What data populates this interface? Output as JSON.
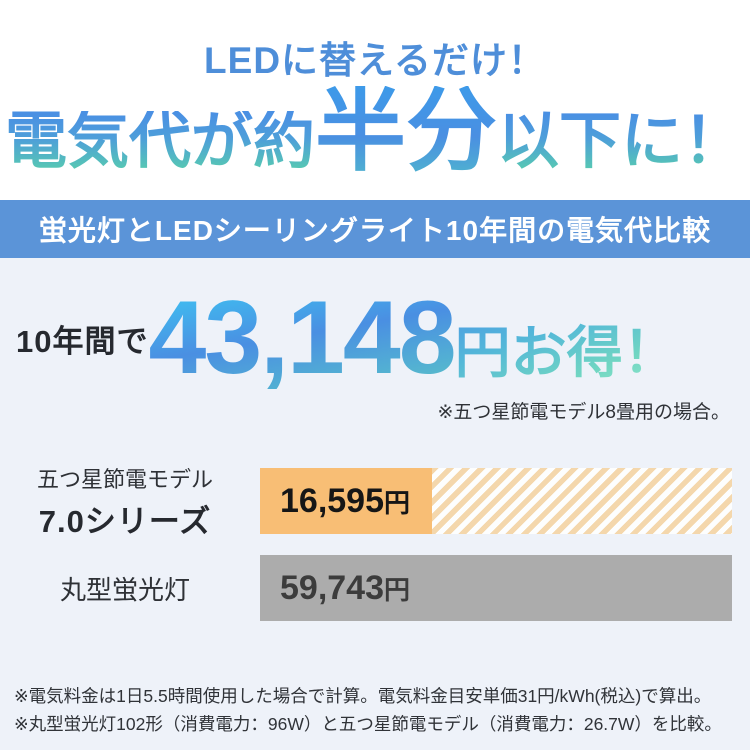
{
  "header": {
    "subtitle": "LEDに替えるだけ！",
    "title_left": "電気代が約",
    "title_emphasis": "半分",
    "title_right": "以下に！"
  },
  "banner": {
    "text": "蛍光灯とLEDシーリングライト10年間の電気代比較"
  },
  "savings": {
    "prefix": "10年間で",
    "amount": "43,148",
    "unit_suffix": "円お得！",
    "note": "※五つ星節電モデル8畳用の場合。"
  },
  "chart_data": {
    "type": "bar",
    "title": "蛍光灯とLEDシーリングライト10年間の電気代比較",
    "orientation": "horizontal",
    "unit": "円",
    "categories": [
      "五つ星節電モデル 7.0シリーズ",
      "丸型蛍光灯"
    ],
    "values": [
      16595,
      59743
    ],
    "bars": [
      {
        "label_line1": "五つ星節電モデル",
        "label_line2": "7.0シリーズ",
        "value": 16595,
        "value_label": "16,595",
        "unit": "円",
        "color": "#f8be75",
        "style": "solid-with-hatched-remainder",
        "fill_percent": 36.5
      },
      {
        "label_line1": "丸型蛍光灯",
        "value": 59743,
        "value_label": "59,743",
        "unit": "円",
        "color": "#acacac",
        "style": "solid",
        "fill_percent": 100
      }
    ],
    "savings_total_label": "43,148",
    "legend": "none",
    "grid": false
  },
  "notes": {
    "line1": "※電気料金は1日5.5時間使用した場合で計算。電気料金目安単価31円/kWh(税込)で算出。",
    "line2": "※丸型蛍光灯102形（消費電力：96W）と五つ星節電モデル（消費電力：26.7W）を比較。"
  },
  "colors": {
    "banner_bg": "#5b94d8",
    "section_bg": "#eef2f9",
    "headline_blue": "#4e8ed9",
    "gradient_blue": "#4a8fe2",
    "gradient_cyan": "#3ec3f2",
    "gradient_teal": "#57c9b2",
    "gradient_mint": "#96ead0",
    "bar_orange": "#f8be75",
    "bar_orange_hatch": "#f4d7ac",
    "bar_gray": "#acacac",
    "text_dark": "#26292f"
  }
}
